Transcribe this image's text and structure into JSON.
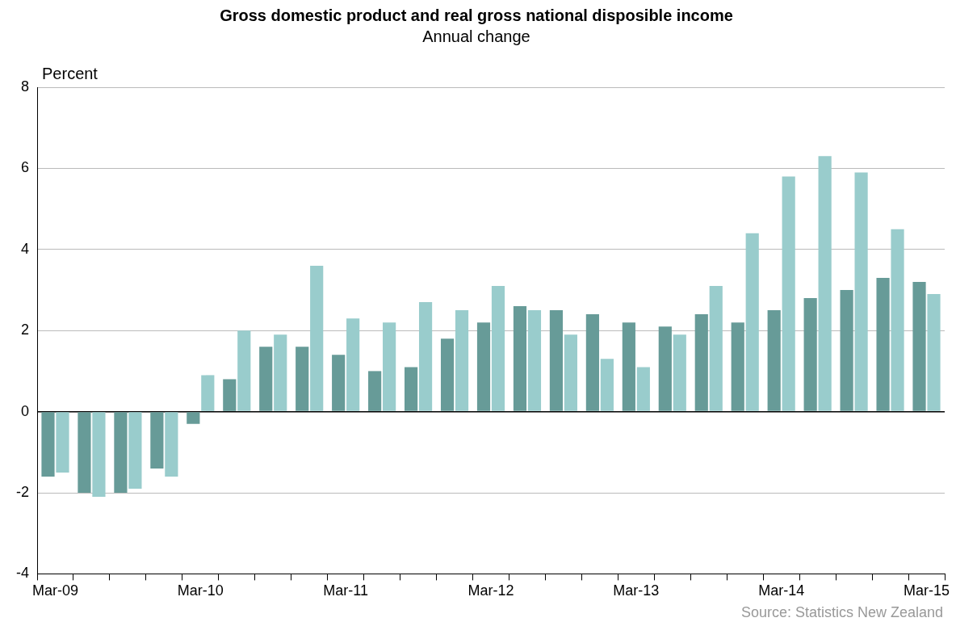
{
  "chart_data": {
    "type": "bar",
    "title": "Gross domestic product and real gross national disposible income",
    "subtitle": "Annual change",
    "ylabel": "Percent",
    "categories": [
      "Mar-09",
      null,
      null,
      null,
      "Mar-10",
      null,
      null,
      null,
      "Mar-11",
      null,
      null,
      null,
      "Mar-12",
      null,
      null,
      null,
      "Mar-13",
      null,
      null,
      null,
      "Mar-14",
      null,
      null,
      null,
      "Mar-15"
    ],
    "series": [
      {
        "color": "#679b98",
        "values": [
          -1.6,
          -2.0,
          -2.0,
          -1.4,
          -0.3,
          0.8,
          1.6,
          1.6,
          1.4,
          1.0,
          1.1,
          1.8,
          2.2,
          2.6,
          2.5,
          2.4,
          2.2,
          2.1,
          2.4,
          2.2,
          2.5,
          2.8,
          3.0,
          3.3,
          3.2
        ]
      },
      {
        "color": "#99cccc",
        "values": [
          -1.5,
          -2.1,
          -1.9,
          -1.6,
          0.9,
          2.0,
          1.9,
          3.6,
          2.3,
          2.2,
          2.7,
          2.5,
          3.1,
          2.5,
          1.9,
          1.3,
          1.1,
          1.9,
          3.1,
          4.4,
          5.8,
          6.3,
          5.9,
          4.5,
          2.9
        ]
      }
    ],
    "ylim": [
      -4,
      8
    ],
    "yticks": [
      -4,
      -2,
      0,
      2,
      4,
      6,
      8
    ],
    "grid": "y",
    "legend": false,
    "annotations": [
      "Source: Statistics New Zealand"
    ]
  }
}
